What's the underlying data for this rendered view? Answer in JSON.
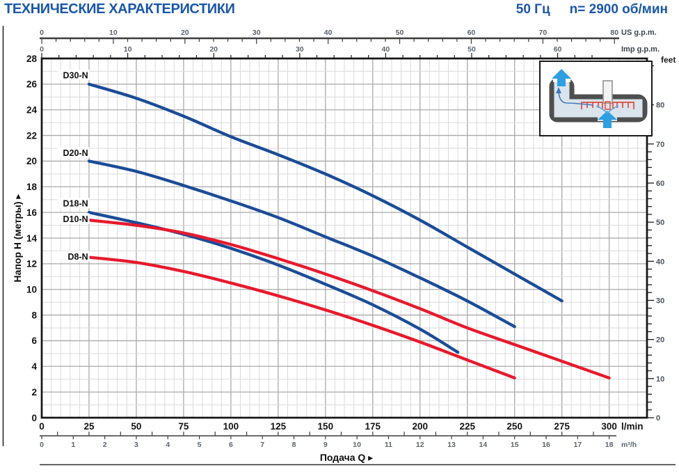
{
  "header": {
    "title": "ТЕХНИЧЕСКИЕ ХАРАКТЕРИСТИКИ",
    "frequency": "50 Гц",
    "speed": "n= 2900 об/мин"
  },
  "colors": {
    "accent_blue": "#1a57a8",
    "curve_blue": "#1b4c97",
    "curve_red": "#e8192c",
    "grid_minor": "#dadada",
    "grid_major": "#a9a9a9",
    "plot_border": "#141414",
    "ruler": "#3c3c3c",
    "inset_pipe": "#4f4f4f",
    "inset_fluid": "#d9e4ed",
    "inset_arrow": "#2e9fe0",
    "inset_impeller": "#e2463d"
  },
  "chart_data": {
    "type": "line",
    "xlabel": "Подача Q ▸",
    "ylabel": "Напор H (метры) ▸",
    "x_axis_lmin": {
      "unit": "l/min",
      "labels": [
        0,
        25,
        50,
        75,
        100,
        125,
        150,
        175,
        200,
        225,
        250,
        275,
        300
      ],
      "minor_step": 5,
      "range": [
        0,
        320
      ]
    },
    "y_axis_m": {
      "unit": "метры",
      "labels": [
        0,
        2,
        4,
        6,
        8,
        10,
        12,
        14,
        16,
        18,
        20,
        22,
        24,
        26,
        28
      ],
      "minor_step": 1,
      "range": [
        0,
        28
      ]
    },
    "x_axis_us_gpm": {
      "unit": "US g.p.m.",
      "labels": [
        0,
        10,
        20,
        30,
        40,
        50,
        60,
        70,
        80
      ],
      "minor_step": 2,
      "max": 80,
      "lmin_per_unit": 3.785
    },
    "x_axis_imp_gpm": {
      "unit": "Imp g.p.m.",
      "labels": [
        0,
        10,
        20,
        30,
        40,
        50,
        60
      ],
      "minor_step": 2,
      "max": 64,
      "lmin_per_unit": 4.546
    },
    "x_axis_m3h": {
      "unit": "m³/h",
      "labels": [
        0,
        1,
        2,
        3,
        4,
        5,
        6,
        7,
        8,
        9,
        10,
        11,
        12,
        13,
        14,
        15,
        16,
        17,
        18
      ],
      "minor_step": 0.5,
      "max": 18,
      "lmin_per_unit": 16.6667
    },
    "y_axis_feet": {
      "unit": "feet",
      "labels": [
        0,
        10,
        20,
        30,
        40,
        50,
        60,
        70,
        80
      ],
      "minor_step": 2,
      "max": 90,
      "m_per_unit": 0.3048
    },
    "series": [
      {
        "name": "D30-N",
        "color": "#1b4c97",
        "label_q": 24.5,
        "label_h": 26.7,
        "points": [
          [
            25,
            26.0
          ],
          [
            50,
            24.9
          ],
          [
            75,
            23.5
          ],
          [
            100,
            21.9
          ],
          [
            125,
            20.5
          ],
          [
            150,
            19.0
          ],
          [
            175,
            17.3
          ],
          [
            200,
            15.4
          ],
          [
            225,
            13.3
          ],
          [
            250,
            11.2
          ],
          [
            275,
            9.1
          ]
        ]
      },
      {
        "name": "D20-N",
        "color": "#1b4c97",
        "label_q": 24.5,
        "label_h": 20.65,
        "points": [
          [
            25,
            20.0
          ],
          [
            50,
            19.2
          ],
          [
            75,
            18.1
          ],
          [
            100,
            16.9
          ],
          [
            125,
            15.6
          ],
          [
            150,
            14.1
          ],
          [
            175,
            12.6
          ],
          [
            200,
            10.9
          ],
          [
            225,
            9.1
          ],
          [
            250,
            7.1
          ]
        ]
      },
      {
        "name": "D18-N",
        "color": "#1b4c97",
        "label_q": 24.5,
        "label_h": 16.7,
        "points": [
          [
            25,
            16.0
          ],
          [
            50,
            15.2
          ],
          [
            75,
            14.3
          ],
          [
            100,
            13.2
          ],
          [
            125,
            11.9
          ],
          [
            150,
            10.4
          ],
          [
            175,
            8.8
          ],
          [
            200,
            6.9
          ],
          [
            220,
            5.1
          ]
        ]
      },
      {
        "name": "D10-N",
        "color": "#e8192c",
        "label_q": 24.5,
        "label_h": 15.5,
        "points": [
          [
            25,
            15.4
          ],
          [
            50,
            15.0
          ],
          [
            75,
            14.4
          ],
          [
            100,
            13.5
          ],
          [
            125,
            12.4
          ],
          [
            150,
            11.2
          ],
          [
            175,
            9.9
          ],
          [
            200,
            8.5
          ],
          [
            225,
            7.0
          ],
          [
            250,
            5.7
          ],
          [
            275,
            4.4
          ],
          [
            300,
            3.1
          ]
        ]
      },
      {
        "name": "D8-N",
        "color": "#e8192c",
        "label_q": 24.5,
        "label_h": 12.55,
        "points": [
          [
            25,
            12.5
          ],
          [
            50,
            12.1
          ],
          [
            75,
            11.4
          ],
          [
            100,
            10.5
          ],
          [
            125,
            9.5
          ],
          [
            150,
            8.4
          ],
          [
            175,
            7.2
          ],
          [
            200,
            5.9
          ],
          [
            225,
            4.5
          ],
          [
            250,
            3.1
          ]
        ]
      }
    ]
  }
}
